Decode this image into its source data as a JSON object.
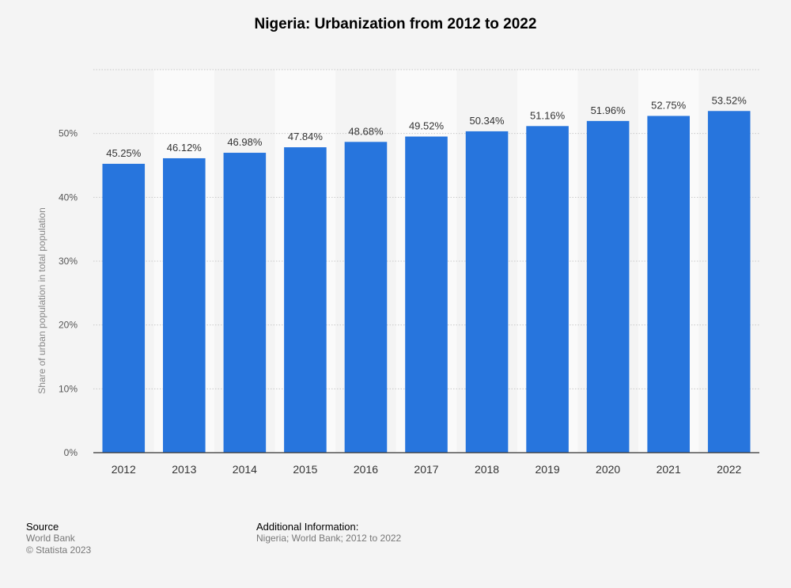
{
  "title": "Nigeria: Urbanization from 2012 to 2022",
  "chart_data": {
    "type": "bar",
    "title": "Nigeria: Urbanization from 2012 to 2022",
    "xlabel": "",
    "ylabel": "Share of urban population in total population",
    "categories": [
      "2012",
      "2013",
      "2014",
      "2015",
      "2016",
      "2017",
      "2018",
      "2019",
      "2020",
      "2021",
      "2022"
    ],
    "values": [
      45.25,
      46.12,
      46.98,
      47.84,
      48.68,
      49.52,
      50.34,
      51.16,
      51.96,
      52.75,
      53.52
    ],
    "value_labels": [
      "45.25%",
      "46.12%",
      "46.98%",
      "47.84%",
      "48.68%",
      "49.52%",
      "50.34%",
      "51.16%",
      "51.96%",
      "52.75%",
      "53.52%"
    ],
    "ylim": [
      0,
      60
    ],
    "yticks": [
      0,
      10,
      20,
      30,
      40,
      50
    ],
    "ytick_labels": [
      "0%",
      "10%",
      "20%",
      "30%",
      "40%",
      "50%"
    ],
    "grid": true,
    "bar_color": "#2775dd"
  },
  "footer": {
    "source_heading": "Source",
    "source_name": "World Bank",
    "copyright": "© Statista 2023",
    "additional_heading": "Additional Information:",
    "additional_text": "Nigeria; World Bank; 2012 to 2022"
  }
}
